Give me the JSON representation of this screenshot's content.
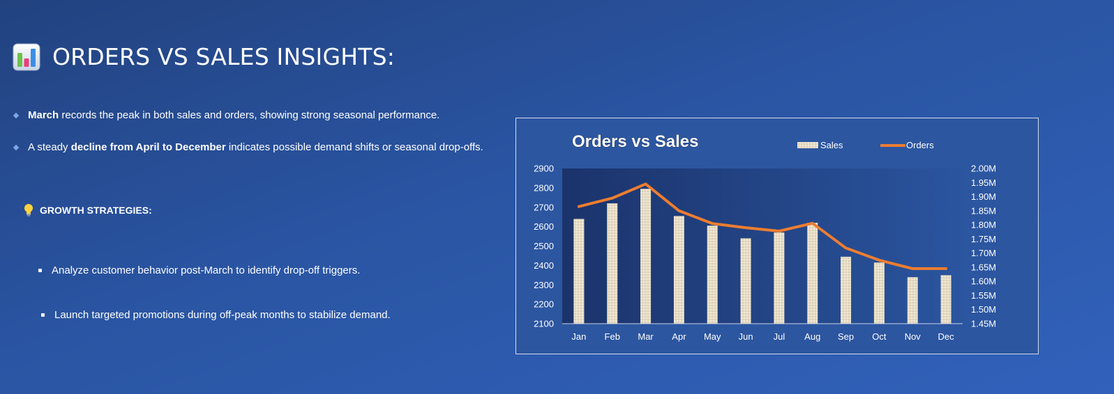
{
  "header": {
    "title": "ORDERS VS SALES INSIGHTS:",
    "icon": "bar-chart-icon"
  },
  "insights": [
    {
      "bold": "March",
      "pre": "",
      "post": " records the peak in both sales and orders, showing strong seasonal performance."
    },
    {
      "pre": "A steady ",
      "bold": "decline from April to December",
      "post": " indicates possible demand shifts or seasonal drop-offs."
    }
  ],
  "growth": {
    "icon": "lightbulb-icon",
    "title": "GROWTH STRATEGIES:",
    "items": [
      "Analyze customer behavior post-March to identify drop-off triggers.",
      "Launch targeted promotions during off-peak months to stabilize demand."
    ]
  },
  "colors": {
    "line": "#ed7d31",
    "bar": "#e7ddc6",
    "plot_bg_left": "#1b336b",
    "plot_bg_right": "#2a559f"
  },
  "chart_data": {
    "type": "bar",
    "title": "Orders vs Sales",
    "categories": [
      "Jan",
      "Feb",
      "Mar",
      "Apr",
      "May",
      "Jun",
      "Jul",
      "Aug",
      "Sep",
      "Oct",
      "Nov",
      "Dec"
    ],
    "series": [
      {
        "name": "Sales",
        "type": "bar",
        "axis": "left",
        "values": [
          2640,
          2720,
          2795,
          2655,
          2605,
          2540,
          2570,
          2620,
          2445,
          2415,
          2340,
          2350
        ]
      },
      {
        "name": "Orders",
        "type": "line",
        "axis": "right",
        "values": [
          1865000,
          1895000,
          1945000,
          1850000,
          1805000,
          1790000,
          1778000,
          1806000,
          1718000,
          1675000,
          1645000,
          1645000
        ]
      }
    ],
    "y_left": {
      "min": 2100,
      "max": 2900,
      "ticks": [
        "2900",
        "2800",
        "2700",
        "2600",
        "2500",
        "2400",
        "2300",
        "2200",
        "2100"
      ]
    },
    "y_right": {
      "min": 1450000,
      "max": 2000000,
      "ticks": [
        "2.00M",
        "1.95M",
        "1.90M",
        "1.85M",
        "1.80M",
        "1.75M",
        "1.70M",
        "1.65M",
        "1.60M",
        "1.55M",
        "1.50M",
        "1.45M"
      ]
    },
    "legend_position": "top-right",
    "grid": false
  }
}
